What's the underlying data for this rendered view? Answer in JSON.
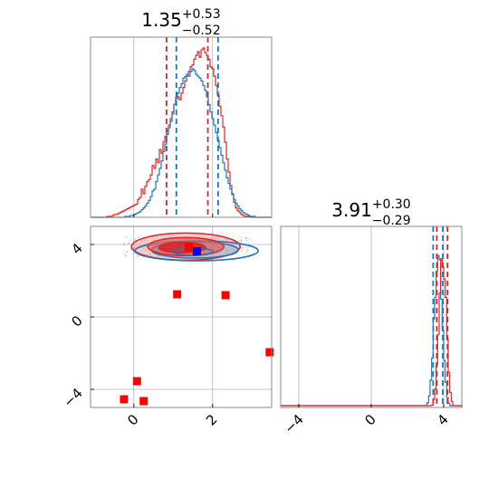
{
  "chart_data": [
    {
      "type": "histogram",
      "panel": "top-left",
      "title": {
        "value": "1.35",
        "upper": "+0.53",
        "lower": "−0.52"
      },
      "xlim": [
        -1.1,
        3.5
      ],
      "grid": true,
      "series": [
        {
          "color": "#d62728",
          "bin_edges": [
            -1.1,
            3.5
          ],
          "counts": [
            0,
            0,
            0,
            0,
            0,
            0,
            0,
            0,
            0,
            1,
            1,
            1,
            2,
            3,
            3,
            4,
            5,
            6,
            7,
            8,
            9,
            10,
            11,
            12,
            13,
            14,
            19,
            21,
            30,
            25,
            33,
            38,
            40,
            45,
            55,
            52,
            62,
            58,
            72,
            68,
            80,
            86,
            92,
            98,
            105,
            110,
            120,
            126,
            128,
            125,
            132,
            138,
            145,
            150,
            155,
            160,
            162,
            168,
            172,
            176,
            170,
            178,
            180,
            175,
            172,
            168,
            160,
            158,
            150,
            140,
            130,
            118,
            108,
            96,
            80,
            62,
            48,
            34,
            25,
            16,
            10,
            7,
            5,
            3,
            2,
            1,
            1,
            1,
            0,
            0,
            1,
            0,
            0,
            0,
            0,
            0,
            0,
            0,
            0,
            0
          ],
          "q16": 0.83,
          "q84": 1.88
        },
        {
          "color": "#1f77b4",
          "counts": [
            0,
            0,
            0,
            0,
            0,
            0,
            0,
            0,
            0,
            0,
            0,
            0,
            0,
            0,
            0,
            0,
            0,
            0,
            0,
            1,
            1,
            1,
            2,
            2,
            3,
            4,
            5,
            6,
            8,
            10,
            12,
            15,
            18,
            22,
            28,
            30,
            38,
            45,
            52,
            60,
            70,
            78,
            88,
            95,
            102,
            112,
            120,
            128,
            132,
            138,
            142,
            148,
            150,
            152,
            150,
            155,
            158,
            156,
            152,
            150,
            148,
            145,
            140,
            135,
            128,
            120,
            112,
            105,
            98,
            90,
            82,
            74,
            66,
            58,
            50,
            42,
            36,
            30,
            24,
            19,
            15,
            12,
            9,
            7,
            5,
            4,
            3,
            2,
            1,
            1,
            1,
            0,
            0,
            0,
            0,
            0,
            0,
            0,
            0,
            0
          ],
          "q16": 1.08,
          "q84": 2.14
        }
      ],
      "xticks": [
        0,
        2
      ]
    },
    {
      "type": "scatter",
      "panel": "bottom-left",
      "xlim": [
        -1.1,
        3.5
      ],
      "ylim": [
        -5.0,
        5.0
      ],
      "yticks": [
        4,
        0,
        -4
      ],
      "ytick_labels": [
        "4",
        "0",
        "−4"
      ],
      "xticks": [
        0,
        2
      ],
      "xtick_labels": [
        "0",
        "2"
      ],
      "grid": true,
      "red_squares": [
        [
          1.1,
          1.25
        ],
        [
          2.33,
          1.2
        ],
        [
          3.45,
          -1.95
        ],
        [
          0.08,
          -3.55
        ],
        [
          -0.25,
          -4.55
        ],
        [
          0.25,
          -4.65
        ],
        [
          1.4,
          3.85
        ]
      ],
      "blue_squares": [
        [
          1.6,
          3.62
        ]
      ],
      "contour_red": {
        "center": [
          1.32,
          3.88
        ],
        "color": "#d62728"
      },
      "contour_blue": {
        "center": [
          1.55,
          3.7
        ],
        "color": "#1f77b4"
      }
    },
    {
      "type": "histogram",
      "panel": "bottom-right",
      "title": {
        "value": "3.91",
        "upper": "+0.30",
        "lower": "−0.29"
      },
      "xlim": [
        -5.0,
        5.0
      ],
      "xticks": [
        -4,
        0,
        4
      ],
      "xtick_labels": [
        "−4",
        "0",
        "4"
      ],
      "grid": true,
      "series": [
        {
          "color": "#1f77b4",
          "center": 3.7,
          "sd": 0.22,
          "q16": 3.42,
          "q84": 3.95
        },
        {
          "color": "#d62728",
          "center": 3.95,
          "sd": 0.2,
          "q16": 3.62,
          "q84": 4.21
        }
      ]
    }
  ]
}
